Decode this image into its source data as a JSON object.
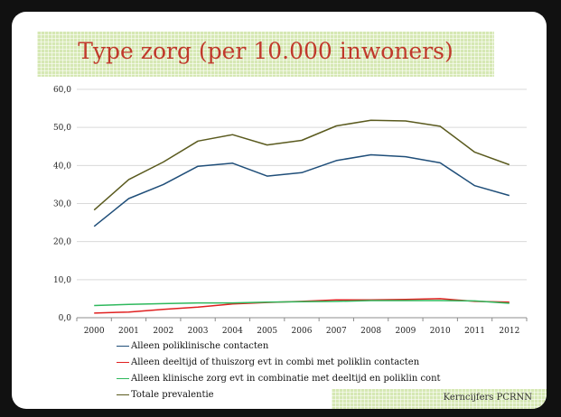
{
  "title": "Type zorg (per 10.000 inwoners)",
  "footer": "Kerncijfers PCRNN",
  "chart_data": {
    "type": "line",
    "title": "Type zorg (per 10.000 inwoners)",
    "xlabel": "",
    "ylabel": "",
    "x": [
      "2000",
      "2001",
      "2002",
      "2003",
      "2004",
      "2005",
      "2006",
      "2007",
      "2008",
      "2009",
      "2010",
      "2011",
      "2012"
    ],
    "ylim": [
      0,
      60
    ],
    "yticks": [
      "0,0",
      "10,0",
      "20,0",
      "30,0",
      "40,0",
      "50,0",
      "60,0"
    ],
    "grid": true,
    "legend_position": "bottom",
    "series": [
      {
        "name": "Alleen poliklinische contacten",
        "color": "#1f4e79",
        "values": [
          24.0,
          31.3,
          35.0,
          39.8,
          40.6,
          37.2,
          38.1,
          41.3,
          42.8,
          42.3,
          40.7,
          34.7,
          32.1
        ]
      },
      {
        "name": "Alleen deeltijd of thuiszorg evt in combi met poliklin contacten",
        "color": "#e02020",
        "values": [
          1.2,
          1.5,
          2.2,
          2.8,
          3.6,
          4.0,
          4.3,
          4.7,
          4.7,
          4.8,
          5.0,
          4.3,
          4.1
        ]
      },
      {
        "name": "Alleen klinische zorg evt in combinatie met deeltijd en poliklin cont",
        "color": "#2eb85c",
        "values": [
          3.2,
          3.5,
          3.7,
          3.9,
          3.9,
          4.1,
          4.2,
          4.3,
          4.5,
          4.5,
          4.5,
          4.4,
          3.8
        ]
      },
      {
        "name": "Totale prevalentie",
        "color": "#5a5a1e",
        "values": [
          28.3,
          36.3,
          40.9,
          46.4,
          48.1,
          45.4,
          46.6,
          50.4,
          51.9,
          51.7,
          50.3,
          43.5,
          40.2
        ]
      }
    ]
  }
}
